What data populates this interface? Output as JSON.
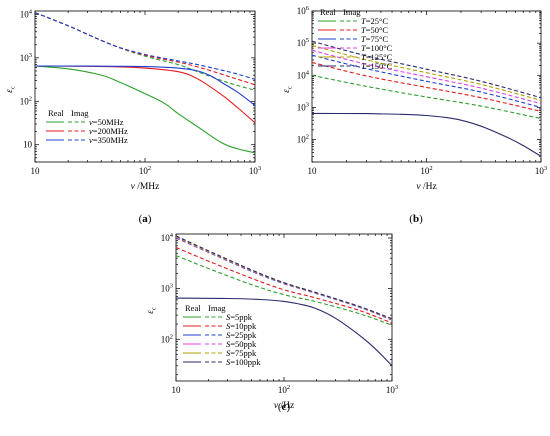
{
  "chart_data": [
    {
      "panel_label": "(a)",
      "type": "line",
      "xscale": "log",
      "yscale": "log",
      "xlim": [
        10,
        1000
      ],
      "ylim": [
        4,
        12000
      ],
      "xlabel": "v /MHz",
      "ylabel": "ε_c",
      "xticks": [
        "10",
        "10^2",
        "10^3"
      ],
      "yticks": [
        "10",
        "10^2",
        "10^3",
        "10^4"
      ],
      "legend_header": [
        "Real",
        "Imag"
      ],
      "legend_position": "lower-left",
      "series": [
        {
          "name": "v=50MHz",
          "color": "#2ca02c",
          "real": {
            "x": [
              10,
              20,
              40,
              60,
              100,
              150,
              200,
              300,
              500,
              700,
              1000
            ],
            "y": [
              650,
              560,
              400,
              270,
              150,
              90,
              52,
              26,
              11,
              8,
              6.5
            ]
          },
          "imag": {
            "x": [
              10,
              20,
              50,
              100,
              200,
              300,
              500,
              700,
              1000
            ],
            "y": [
              11000,
              5500,
              2000,
              1100,
              700,
              480,
              300,
              230,
              180
            ]
          }
        },
        {
          "name": "v=200MHz",
          "color": "#e41a1c",
          "real": {
            "x": [
              10,
              30,
              60,
              100,
              200,
              300,
              500,
              700,
              1000
            ],
            "y": [
              650,
              640,
              620,
              580,
              480,
              330,
              140,
              70,
              32
            ]
          },
          "imag": {
            "x": [
              10,
              20,
              50,
              100,
              200,
              300,
              500,
              700,
              1000
            ],
            "y": [
              11000,
              5500,
              2000,
              1150,
              800,
              620,
              420,
              320,
              240
            ]
          }
        },
        {
          "name": "v=350MHz",
          "color": "#1f3fd1",
          "real": {
            "x": [
              10,
              30,
              100,
              200,
              300,
              400,
              500,
              700,
              1000
            ],
            "y": [
              650,
              645,
              630,
              580,
              500,
              380,
              270,
              160,
              80
            ]
          },
          "imag": {
            "x": [
              10,
              20,
              50,
              100,
              200,
              300,
              500,
              700,
              1000
            ],
            "y": [
              11000,
              5500,
              2000,
              1200,
              850,
              700,
              520,
              420,
              320
            ]
          }
        }
      ]
    },
    {
      "panel_label": "(b)",
      "type": "line",
      "xscale": "log",
      "yscale": "log",
      "xlim": [
        10,
        1000
      ],
      "ylim": [
        20,
        1000000
      ],
      "xlabel": "v /Hz",
      "ylabel": "ε_c",
      "xticks": [
        "10",
        "10^2",
        "10^3"
      ],
      "yticks": [
        "10^2",
        "10^3",
        "10^4",
        "10^5",
        "10^6"
      ],
      "legend_header": [
        "Real",
        "Imag"
      ],
      "legend_position": "top-left",
      "real_curve": {
        "color": "#2a2a6a",
        "x": [
          10,
          30,
          60,
          100,
          150,
          200,
          300,
          500,
          700,
          1000
        ],
        "y": [
          650,
          640,
          610,
          560,
          480,
          400,
          260,
          120,
          65,
          30
        ]
      },
      "series": [
        {
          "name": "T=25°C",
          "color": "#2ca02c",
          "imag": {
            "x": [
              10,
              30,
              100,
              300,
              1000
            ],
            "y": [
              10000,
              4500,
              2100,
              1100,
              450
            ]
          }
        },
        {
          "name": "T=50°C",
          "color": "#e41a1c",
          "imag": {
            "x": [
              10,
              30,
              100,
              300,
              1000
            ],
            "y": [
              25000,
              9500,
              4200,
              2000,
              750
            ]
          }
        },
        {
          "name": "T=75°C",
          "color": "#1f3fd1",
          "imag": {
            "x": [
              10,
              30,
              100,
              300,
              1000
            ],
            "y": [
              42000,
              16000,
              6500,
              3000,
              1000
            ]
          }
        },
        {
          "name": "T=100°C",
          "color": "#e040e0",
          "imag": {
            "x": [
              10,
              30,
              100,
              300,
              1000
            ],
            "y": [
              60000,
              22000,
              9000,
              4000,
              1300
            ]
          }
        },
        {
          "name": "T=125°C",
          "color": "#b0a000",
          "imag": {
            "x": [
              10,
              30,
              100,
              300,
              1000
            ],
            "y": [
              85000,
              30000,
              12000,
              5200,
              1650
            ]
          }
        },
        {
          "name": "T=150°C",
          "color": "#2a2a6a",
          "imag": {
            "x": [
              10,
              30,
              100,
              300,
              1000
            ],
            "y": [
              115000,
              40000,
              15500,
              6500,
              2000
            ]
          }
        }
      ]
    },
    {
      "panel_label": "(c)",
      "type": "line",
      "xscale": "log",
      "yscale": "log",
      "xlim": [
        10,
        1000
      ],
      "ylim": [
        15,
        12000
      ],
      "xlabel": "v /Hz",
      "ylabel": "ε_c",
      "xticks": [
        "10",
        "10^2",
        "10^3"
      ],
      "yticks": [
        "10^2",
        "10^3",
        "10^4"
      ],
      "legend_header": [
        "Real",
        "Imag"
      ],
      "legend_position": "lower-left",
      "real_curve": {
        "color": "#2a2a6a",
        "x": [
          10,
          30,
          60,
          100,
          150,
          200,
          300,
          500,
          700,
          1000
        ],
        "y": [
          650,
          640,
          610,
          560,
          480,
          400,
          260,
          120,
          65,
          30
        ]
      },
      "series": [
        {
          "name": "S=5ppk",
          "color": "#2ca02c",
          "imag": {
            "x": [
              10,
              20,
              50,
              100,
              200,
              500,
              1000
            ],
            "y": [
              4500,
              2500,
              1200,
              760,
              550,
              320,
              190
            ]
          }
        },
        {
          "name": "S=10ppk",
          "color": "#e41a1c",
          "imag": {
            "x": [
              10,
              20,
              50,
              100,
              200,
              500,
              1000
            ],
            "y": [
              6500,
              3500,
              1600,
              950,
              650,
              370,
              210
            ]
          }
        },
        {
          "name": "S=25ppk",
          "color": "#1f3fd1",
          "imag": {
            "x": [
              10,
              20,
              50,
              100,
              200,
              500,
              1000
            ],
            "y": [
              10000,
              5200,
              2200,
              1250,
              800,
              430,
              240
            ]
          }
        },
        {
          "name": "S=50ppk",
          "color": "#e040e0",
          "imag": {
            "x": [
              10,
              20,
              50,
              100,
              200,
              500,
              1000
            ],
            "y": [
              10300,
              5300,
              2250,
              1270,
              810,
              435,
              245
            ]
          }
        },
        {
          "name": "S=75ppk",
          "color": "#b0a000",
          "imag": {
            "x": [
              10,
              20,
              50,
              100,
              200,
              500,
              1000
            ],
            "y": [
              10600,
              5400,
              2300,
              1290,
              820,
              440,
              250
            ]
          }
        },
        {
          "name": "S=100ppk",
          "color": "#2a2a6a",
          "imag": {
            "x": [
              10,
              20,
              50,
              100,
              200,
              500,
              1000
            ],
            "y": [
              11000,
              5600,
              2350,
              1310,
              830,
              445,
              255
            ]
          }
        }
      ]
    }
  ]
}
